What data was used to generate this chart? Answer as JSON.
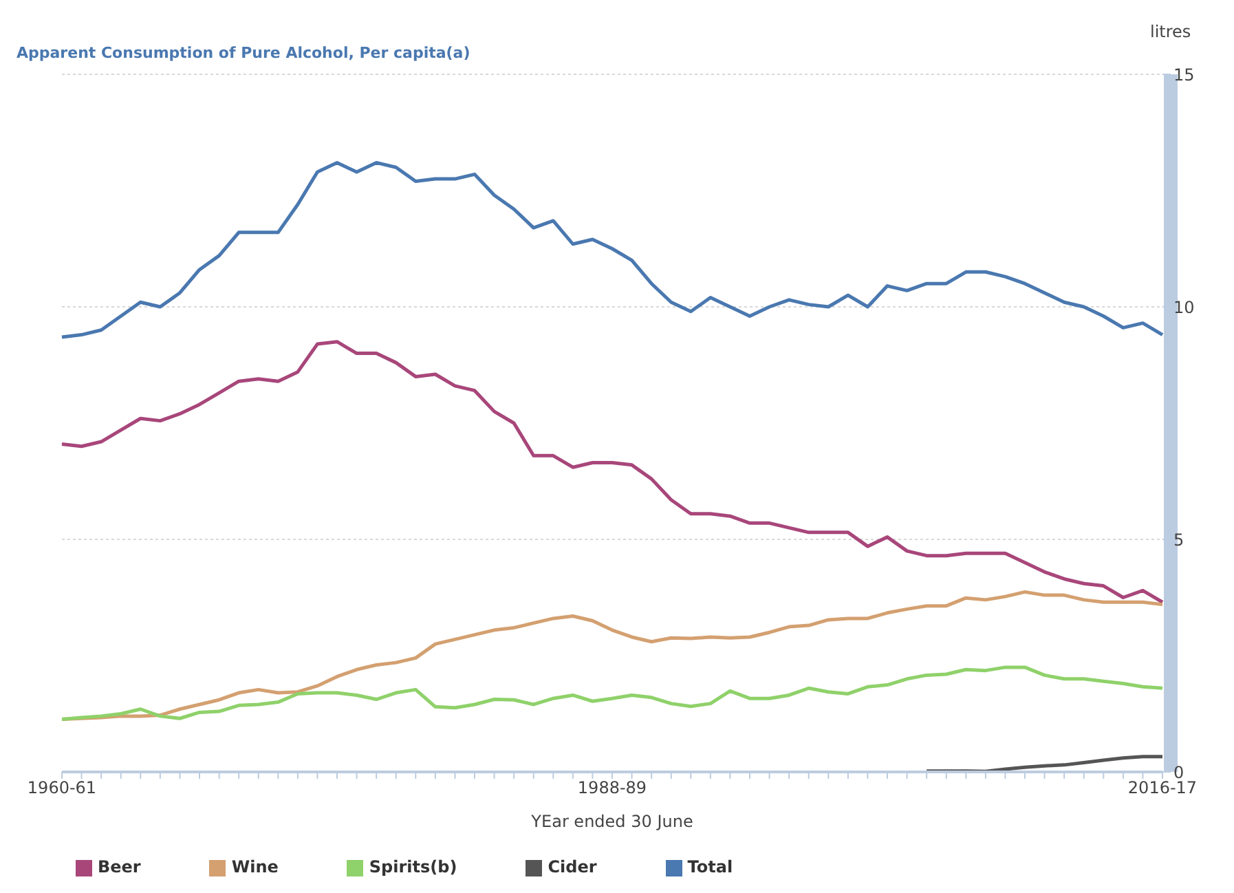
{
  "chart_data": {
    "type": "line",
    "title": "Apparent Consumption of Pure Alcohol, Per capita(a)",
    "xlabel": "YEar ended 30 June",
    "ylabel": "litres",
    "categories": [
      "1960-61",
      null,
      null,
      null,
      null,
      null,
      null,
      null,
      null,
      null,
      null,
      null,
      null,
      null,
      null,
      null,
      null,
      null,
      null,
      null,
      null,
      null,
      null,
      null,
      null,
      null,
      null,
      null,
      "1988-89",
      null,
      null,
      null,
      null,
      null,
      null,
      null,
      null,
      null,
      null,
      null,
      null,
      null,
      null,
      null,
      null,
      null,
      null,
      null,
      null,
      null,
      null,
      null,
      null,
      null,
      null,
      null,
      "2016-17"
    ],
    "series": [
      {
        "name": "Beer",
        "color": "#a8467a",
        "values": [
          7.05,
          7.0,
          7.1,
          7.35,
          7.6,
          7.55,
          7.7,
          7.9,
          8.15,
          8.4,
          8.45,
          8.4,
          8.6,
          9.2,
          9.25,
          9.0,
          9.0,
          8.8,
          8.5,
          8.55,
          8.3,
          8.2,
          7.75,
          7.5,
          6.8,
          6.8,
          6.55,
          6.65,
          6.65,
          6.6,
          6.3,
          5.85,
          5.55,
          5.55,
          5.5,
          5.35,
          5.35,
          5.25,
          5.15,
          5.15,
          5.15,
          4.85,
          5.05,
          4.75,
          4.65,
          4.65,
          4.7,
          4.7,
          4.7,
          4.5,
          4.3,
          4.15,
          4.05,
          4.0,
          3.75,
          3.9,
          3.65
        ]
      },
      {
        "name": "Wine",
        "color": "#d4a070",
        "values": [
          1.13,
          1.15,
          1.17,
          1.2,
          1.2,
          1.22,
          1.35,
          1.45,
          1.55,
          1.7,
          1.77,
          1.7,
          1.72,
          1.85,
          2.05,
          2.2,
          2.3,
          2.35,
          2.45,
          2.75,
          2.85,
          2.95,
          3.05,
          3.1,
          3.2,
          3.3,
          3.35,
          3.25,
          3.05,
          2.9,
          2.8,
          2.88,
          2.87,
          2.9,
          2.88,
          2.9,
          3.0,
          3.12,
          3.15,
          3.27,
          3.3,
          3.3,
          3.42,
          3.5,
          3.57,
          3.57,
          3.74,
          3.7,
          3.77,
          3.87,
          3.8,
          3.8,
          3.7,
          3.65,
          3.65,
          3.65,
          3.6
        ]
      },
      {
        "name": "Spirits(b)",
        "color": "#8fd16a",
        "values": [
          1.13,
          1.17,
          1.2,
          1.25,
          1.35,
          1.2,
          1.15,
          1.28,
          1.3,
          1.43,
          1.45,
          1.5,
          1.68,
          1.7,
          1.7,
          1.65,
          1.56,
          1.7,
          1.77,
          1.4,
          1.38,
          1.45,
          1.56,
          1.55,
          1.45,
          1.58,
          1.65,
          1.52,
          1.58,
          1.65,
          1.6,
          1.47,
          1.41,
          1.47,
          1.74,
          1.58,
          1.58,
          1.65,
          1.8,
          1.72,
          1.68,
          1.83,
          1.87,
          2.0,
          2.08,
          2.1,
          2.2,
          2.18,
          2.25,
          2.25,
          2.08,
          2.0,
          2.0,
          1.95,
          1.9,
          1.83,
          1.8
        ]
      },
      {
        "name": "Cider",
        "color": "#555555",
        "values": [
          null,
          null,
          null,
          null,
          null,
          null,
          null,
          null,
          null,
          null,
          null,
          null,
          null,
          null,
          null,
          null,
          null,
          null,
          null,
          null,
          null,
          null,
          null,
          null,
          null,
          null,
          null,
          null,
          null,
          null,
          null,
          null,
          null,
          null,
          null,
          null,
          null,
          null,
          null,
          null,
          null,
          null,
          null,
          null,
          0.02,
          0.02,
          0.02,
          0.01,
          0.06,
          0.1,
          0.13,
          0.15,
          0.2,
          0.25,
          0.3,
          0.33,
          0.33
        ]
      },
      {
        "name": "Total",
        "color": "#4a78b0",
        "values": [
          9.35,
          9.4,
          9.5,
          9.8,
          10.1,
          10.0,
          10.3,
          10.8,
          11.1,
          11.6,
          11.6,
          11.6,
          12.2,
          12.9,
          13.1,
          12.9,
          13.1,
          13.0,
          12.7,
          12.75,
          12.75,
          12.85,
          12.4,
          12.1,
          11.7,
          11.85,
          11.35,
          11.45,
          11.25,
          11.0,
          10.5,
          10.1,
          9.9,
          10.2,
          10.0,
          9.8,
          10.0,
          10.15,
          10.05,
          10.0,
          10.25,
          10.0,
          10.45,
          10.35,
          10.5,
          10.5,
          10.75,
          10.75,
          10.65,
          10.5,
          10.3,
          10.1,
          10.0,
          9.8,
          9.55,
          9.65,
          9.4
        ]
      }
    ],
    "ylim": [
      0,
      15
    ],
    "yticks": [
      0,
      5,
      10,
      15
    ],
    "grid": "y",
    "legend": "bottom left",
    "marker": "none",
    "line_style": "solid"
  }
}
